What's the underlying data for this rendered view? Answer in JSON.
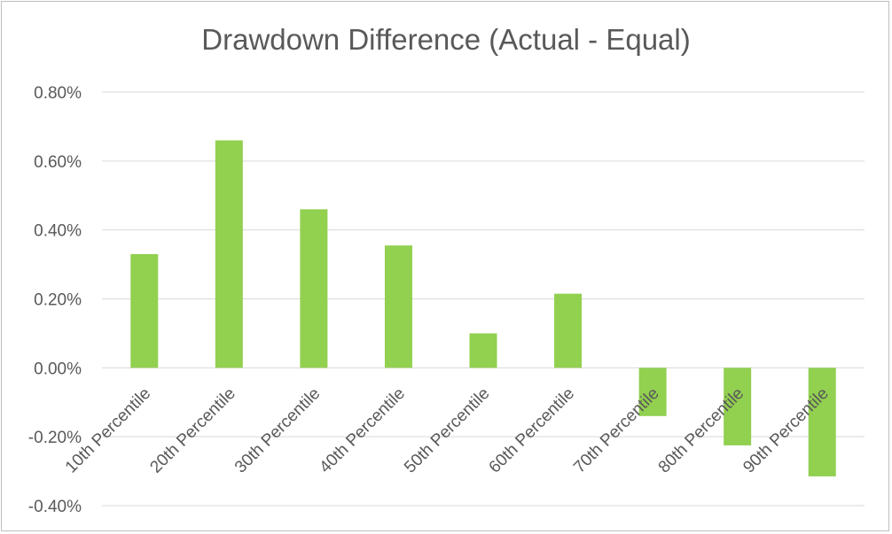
{
  "chart_data": {
    "type": "bar",
    "title": "Drawdown Difference (Actual - Equal)",
    "xlabel": "",
    "ylabel": "",
    "categories": [
      "10th Percentile",
      "20th Percentile",
      "30th Percentile",
      "40th Percentile",
      "50th Percentile",
      "60th Percentile",
      "70th Percentile",
      "80th Percentile",
      "90th Percentile"
    ],
    "values": [
      0.33,
      0.66,
      0.46,
      0.355,
      0.1,
      0.215,
      -0.14,
      -0.225,
      -0.315
    ],
    "value_unit": "%",
    "ylim": [
      -0.4,
      0.8
    ],
    "yticks": [
      0.8,
      0.6,
      0.4,
      0.2,
      0.0,
      -0.2,
      -0.4
    ],
    "ytick_labels": [
      "0.80%",
      "0.60%",
      "0.40%",
      "0.20%",
      "0.00%",
      "-0.20%",
      "-0.40%"
    ],
    "grid": true,
    "legend": "none",
    "bar_color": "#92d050",
    "grid_color": "#d9d9d9",
    "text_color": "#595959"
  }
}
